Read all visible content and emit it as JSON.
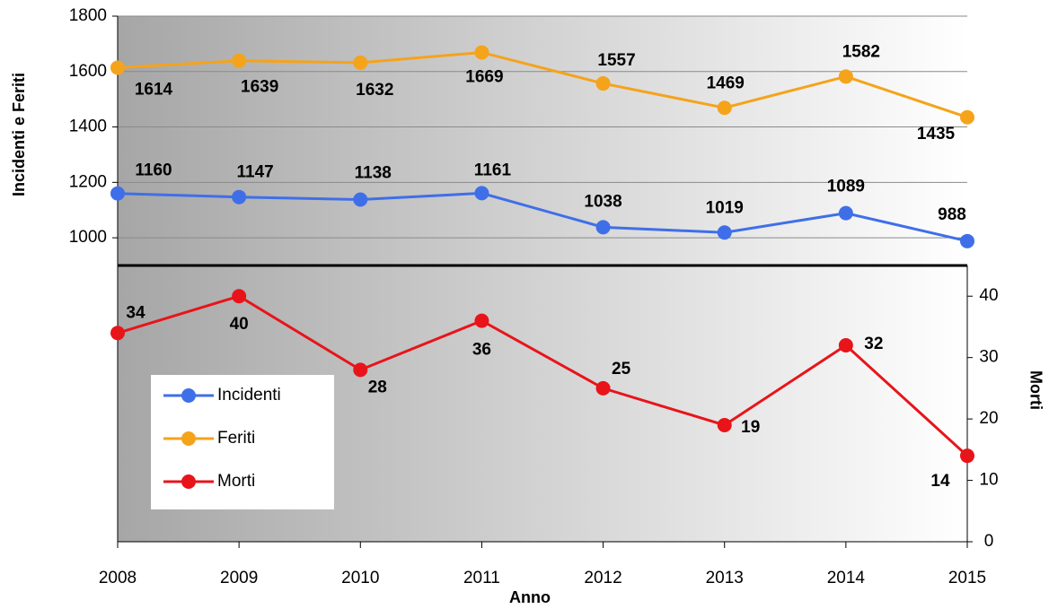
{
  "chart_data": {
    "type": "line",
    "x_label": "Anno",
    "y_label": "Incidenti e Feriti",
    "y2_label": "Morti",
    "categories": [
      "2008",
      "2009",
      "2010",
      "2011",
      "2012",
      "2013",
      "2014",
      "2015"
    ],
    "series": [
      {
        "name": "Incidenti",
        "color": "#3f6fe8",
        "values": [
          1160,
          1147,
          1138,
          1161,
          1038,
          1019,
          1089,
          988
        ]
      },
      {
        "name": "Feriti",
        "color": "#f5a31a",
        "label_color": "#f07f1a",
        "values": [
          1614,
          1639,
          1632,
          1669,
          1557,
          1469,
          1582,
          1435
        ]
      },
      {
        "name": "Morti",
        "color": "#e8141a",
        "axis": "y2",
        "values": [
          34,
          40,
          28,
          36,
          25,
          19,
          32,
          14
        ]
      }
    ],
    "ylim": [
      900,
      1800
    ],
    "yticks": [
      1000,
      1200,
      1400,
      1600,
      1800
    ],
    "y2lim": [
      0,
      45
    ],
    "y2ticks": [
      0,
      10,
      20,
      30,
      40
    ],
    "grid": true,
    "legend": "lower left"
  }
}
